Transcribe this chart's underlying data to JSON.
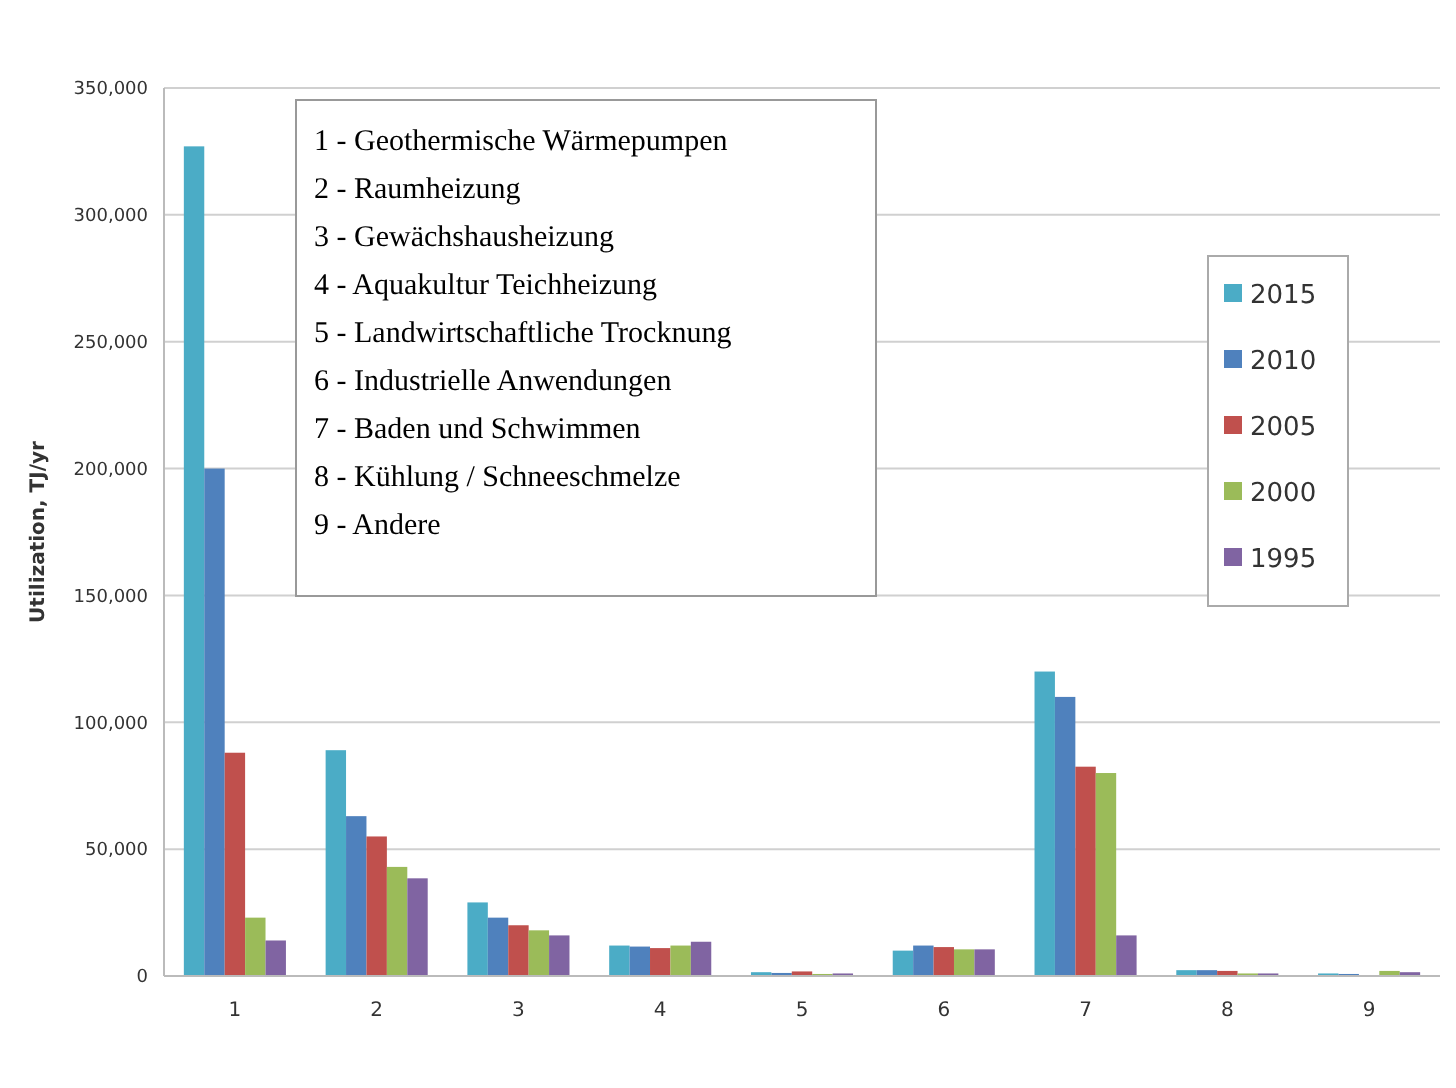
{
  "chart_data": {
    "type": "bar",
    "ylabel": "Utilization, TJ/yr",
    "categories": [
      "1",
      "2",
      "3",
      "4",
      "5",
      "6",
      "7",
      "8",
      "9"
    ],
    "series": [
      {
        "name": "2015",
        "color": "#4bacc6",
        "values": [
          327000,
          89000,
          29000,
          12000,
          1500,
          10000,
          120000,
          2300,
          1000
        ]
      },
      {
        "name": "2010",
        "color": "#4f81bd",
        "values": [
          200000,
          63000,
          23000,
          11600,
          1200,
          12000,
          110000,
          2300,
          800
        ]
      },
      {
        "name": "2005",
        "color": "#c0504d",
        "values": [
          88000,
          55000,
          20000,
          11000,
          1800,
          11400,
          82500,
          2000,
          null
        ]
      },
      {
        "name": "2000",
        "color": "#9bbb59",
        "values": [
          23000,
          43000,
          18000,
          12000,
          800,
          10500,
          80000,
          1000,
          2000
        ]
      },
      {
        "name": "1995",
        "color": "#8064a2",
        "values": [
          14000,
          38500,
          16000,
          13500,
          1000,
          10500,
          16000,
          1000,
          1500
        ]
      }
    ],
    "ylim": [
      0,
      350000
    ],
    "yticks": [
      {
        "value": 0,
        "label": "0"
      },
      {
        "value": 50000,
        "label": "50,000"
      },
      {
        "value": 100000,
        "label": "100,000"
      },
      {
        "value": 150000,
        "label": "150,000"
      },
      {
        "value": 200000,
        "label": "200,000"
      },
      {
        "value": 250000,
        "label": "250,000"
      },
      {
        "value": 300000,
        "label": "300,000"
      },
      {
        "value": 350000,
        "label": "350,000"
      }
    ],
    "grid": "y",
    "legend": "right",
    "annotations": [
      "1 - Geothermische Wärmepumpen",
      "2 - Raumheizung",
      "3 - Gewächshausheizung",
      "4 - Aquakultur Teichheizung",
      "5 - Landwirtschaftliche Trocknung",
      "6 - Industrielle Anwendungen",
      "7 - Baden und Schwimmen",
      "8 - Kühlung / Schneeschmelze",
      "9 - Andere"
    ]
  }
}
